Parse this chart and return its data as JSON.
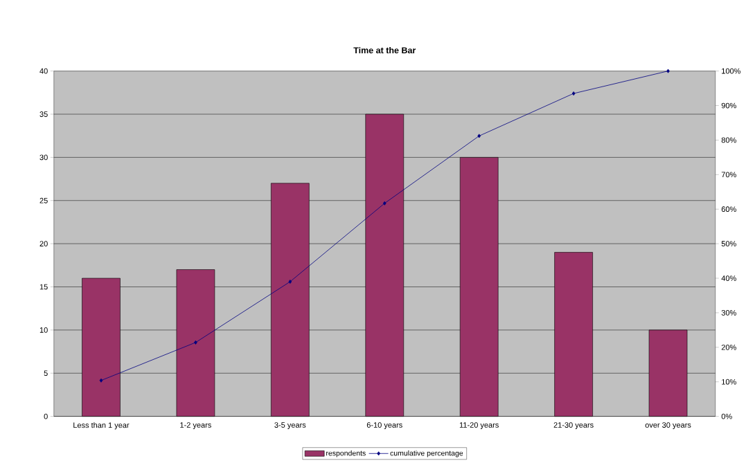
{
  "chart_data": {
    "type": "bar",
    "title": "Time at the Bar",
    "categories": [
      "Less than 1 year",
      "1-2 years",
      "3-5 years",
      "6-10 years",
      "11-20 years",
      "21-30 years",
      "over 30 years"
    ],
    "series": [
      {
        "name": "respondents",
        "color": "#993366",
        "values": [
          16,
          17,
          27,
          35,
          30,
          19,
          10
        ]
      },
      {
        "name": "cumulative percentage",
        "type": "line",
        "axis": "y2",
        "color": "#000080",
        "marker": "diamond",
        "values": [
          10.4,
          21.4,
          39.0,
          61.7,
          81.2,
          93.5,
          100
        ]
      }
    ],
    "ylim": [
      0,
      40
    ],
    "yticks": [
      0,
      5,
      10,
      15,
      20,
      25,
      30,
      35,
      40
    ],
    "y2lim": [
      0,
      100
    ],
    "y2ticks": [
      {
        "value": 0,
        "label": "0%"
      },
      {
        "value": 10,
        "label": "10%"
      },
      {
        "value": 20,
        "label": "20%"
      },
      {
        "value": 30,
        "label": "30%"
      },
      {
        "value": 40,
        "label": "40%"
      },
      {
        "value": 50,
        "label": "50%"
      },
      {
        "value": 60,
        "label": "60%"
      },
      {
        "value": 70,
        "label": "70%"
      },
      {
        "value": 80,
        "label": "80%"
      },
      {
        "value": 90,
        "label": "90%"
      },
      {
        "value": 100,
        "label": "100%"
      }
    ],
    "grid": "y",
    "legend": "bottom"
  }
}
